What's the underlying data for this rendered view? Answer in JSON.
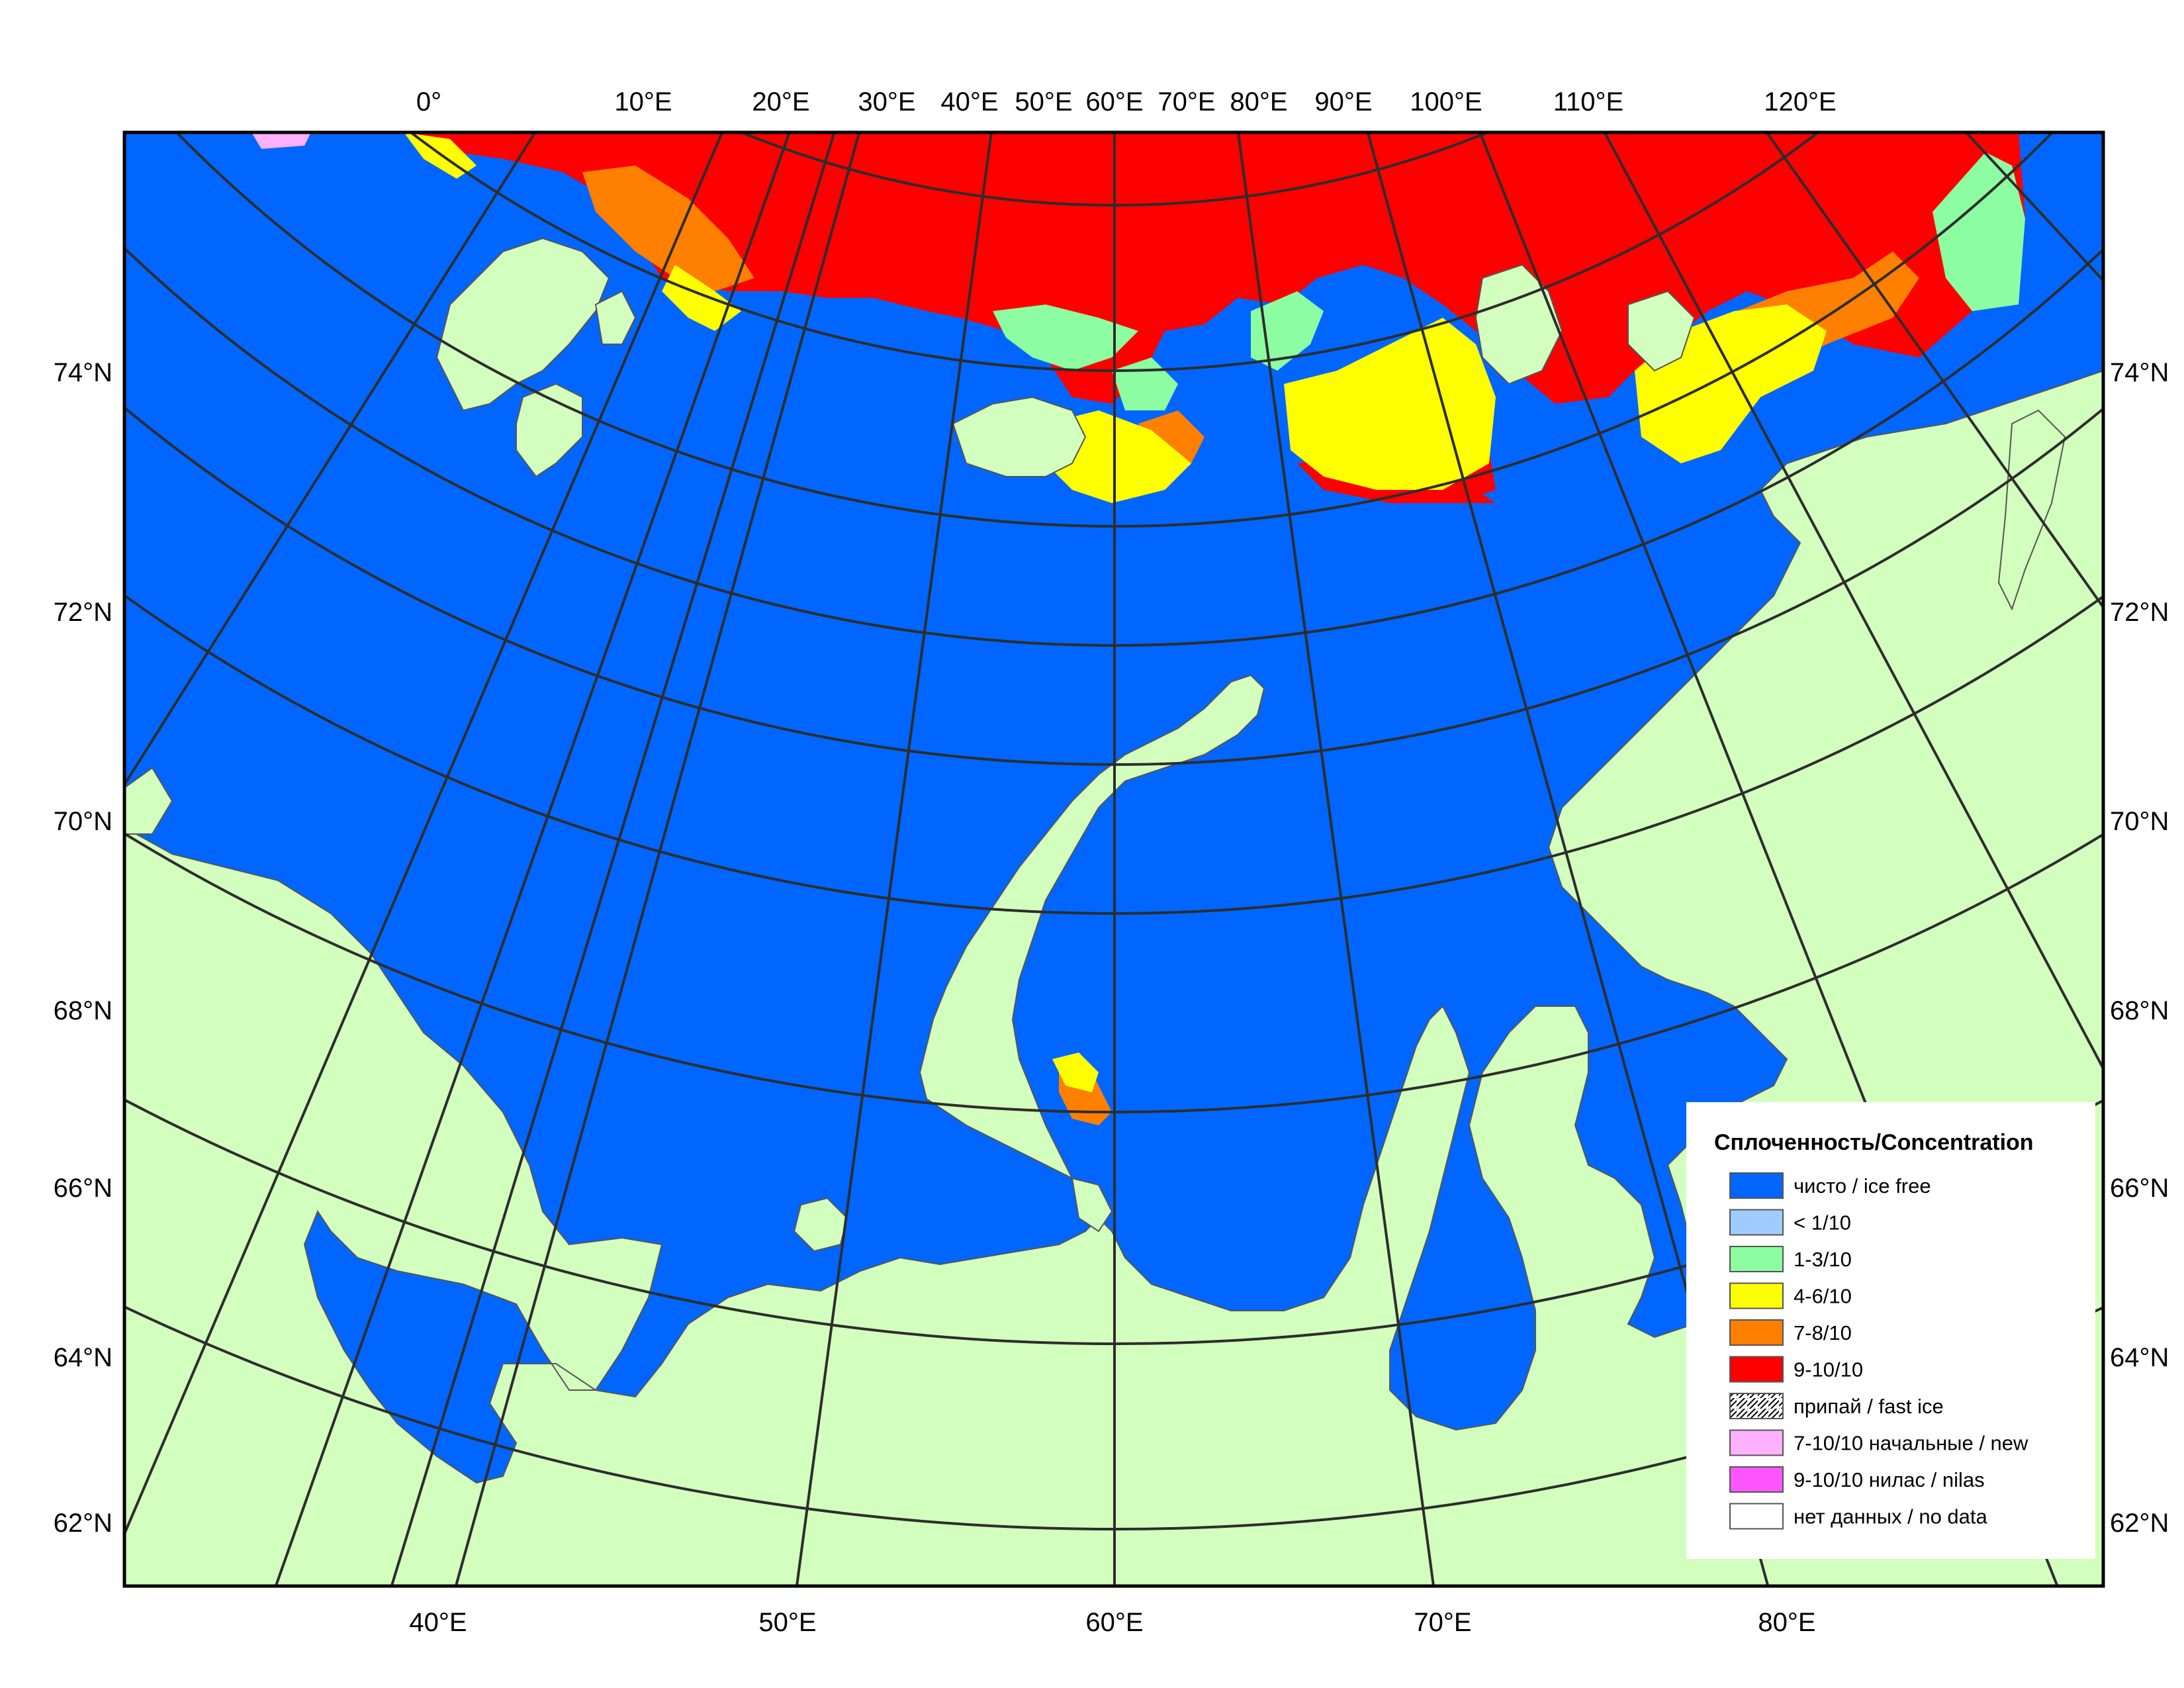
{
  "map": {
    "legend": {
      "title": "Сплоченность/Concentration",
      "items": [
        {
          "label": "чисто / ice free",
          "color": "#0066ff",
          "pattern": "solid"
        },
        {
          "label": "< 1/10",
          "color": "#9fcbff",
          "pattern": "solid"
        },
        {
          "label": "1-3/10",
          "color": "#8cfda0",
          "pattern": "solid"
        },
        {
          "label": "4-6/10",
          "color": "#ffff00",
          "pattern": "solid"
        },
        {
          "label": "7-8/10",
          "color": "#ff8000",
          "pattern": "solid"
        },
        {
          "label": "9-10/10",
          "color": "#ff0000",
          "pattern": "solid"
        },
        {
          "label": "припай / fast ice",
          "color": "#ffffff",
          "pattern": "hatch"
        },
        {
          "label": "7-10/10 начальные / new",
          "color": "#ffb0ff",
          "pattern": "solid"
        },
        {
          "label": "9-10/10 нилас / nilas",
          "color": "#ff55ff",
          "pattern": "solid"
        },
        {
          "label": "нет данных / no data",
          "color": "#ffffff",
          "pattern": "solid"
        }
      ]
    },
    "top_ticks": [
      "0°",
      "10°E",
      "20°E",
      "30°E",
      "40°E",
      "50°E",
      "60°E",
      "70°E",
      "80°E",
      "90°E",
      "100°E",
      "110°E",
      "120°E"
    ],
    "bottom_ticks": [
      "40°E",
      "50°E",
      "60°E",
      "70°E",
      "80°E"
    ],
    "left_ticks": [
      "74°N",
      "72°N",
      "70°N",
      "68°N",
      "66°N",
      "64°N",
      "62°N"
    ],
    "right_ticks": [
      "74°N",
      "72°N",
      "70°N",
      "68°N",
      "66°N",
      "64°N",
      "62°N"
    ],
    "colors": {
      "sea": "#0066ff",
      "land": "#d3ffbe",
      "frame": "#000000",
      "graticule": "#2d2d2d"
    }
  }
}
